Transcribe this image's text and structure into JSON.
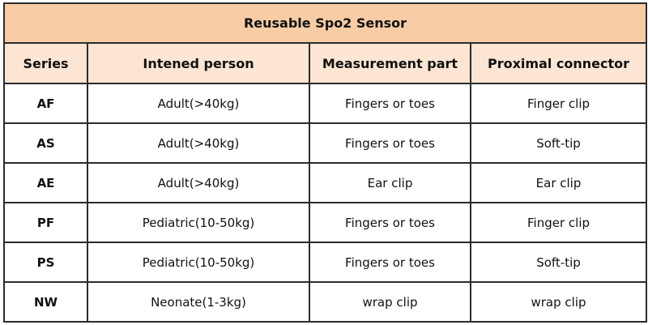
{
  "title": "Reusable Spo2 Sensor",
  "colors": {
    "title_bg": "#f8cca6",
    "header_bg": "#fce5d3",
    "border": "#2b2b2b"
  },
  "headers": [
    "Series",
    "Intened person",
    "Measurement part",
    "Proximal connector"
  ],
  "rows": [
    [
      "AF",
      "Adult(>40kg)",
      "Fingers or toes",
      "Finger clip"
    ],
    [
      "AS",
      "Adult(>40kg)",
      "Fingers or toes",
      "Soft-tip"
    ],
    [
      "AE",
      "Adult(>40kg)",
      "Ear clip",
      "Ear clip"
    ],
    [
      "PF",
      "Pediatric(10-50kg)",
      "Fingers or toes",
      "Finger clip"
    ],
    [
      "PS",
      "Pediatric(10-50kg)",
      "Fingers or toes",
      "Soft-tip"
    ],
    [
      "NW",
      "Neonate(1-3kg)",
      "wrap clip",
      "wrap clip"
    ]
  ]
}
